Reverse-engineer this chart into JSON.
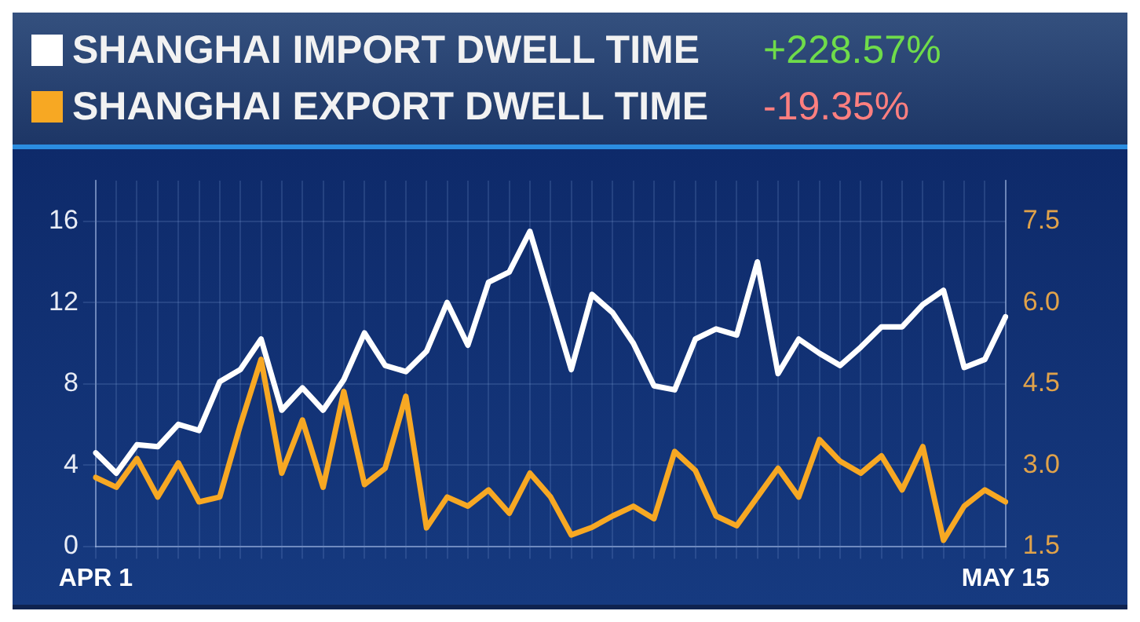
{
  "chart_data": {
    "type": "line",
    "categories": [
      "APR 1",
      null,
      null,
      null,
      null,
      null,
      null,
      null,
      null,
      null,
      null,
      null,
      null,
      null,
      null,
      null,
      null,
      null,
      null,
      null,
      null,
      null,
      null,
      null,
      null,
      null,
      null,
      null,
      null,
      null,
      null,
      null,
      null,
      null,
      null,
      null,
      null,
      null,
      null,
      null,
      null,
      null,
      null,
      null,
      "MAY 15"
    ],
    "series": [
      {
        "name": "SHANGHAI IMPORT DWELL TIME",
        "color": "#ffffff",
        "values": [
          4.6,
          3.6,
          5.0,
          4.9,
          6.0,
          5.7,
          8.1,
          8.7,
          10.2,
          6.7,
          7.8,
          6.7,
          8.2,
          10.5,
          8.9,
          8.6,
          9.6,
          12.0,
          9.9,
          13.0,
          13.5,
          15.5,
          12.1,
          8.7,
          12.4,
          11.5,
          10.0,
          7.9,
          7.7,
          10.2,
          10.7,
          10.4,
          14.0,
          8.5,
          10.2,
          9.5,
          8.9,
          9.8,
          10.8,
          10.8,
          11.9,
          12.6,
          8.8,
          9.2,
          11.3
        ]
      },
      {
        "name": "SHANGHAI EXPORT DWELL TIME",
        "color": "#f7a823",
        "axis": "y2",
        "values": [
          2.77,
          2.59,
          3.12,
          2.41,
          3.04,
          2.32,
          2.41,
          3.74,
          4.95,
          2.85,
          3.83,
          2.59,
          4.36,
          2.64,
          2.94,
          4.27,
          1.84,
          2.41,
          2.24,
          2.54,
          2.11,
          2.85,
          2.41,
          1.71,
          1.85,
          2.06,
          2.24,
          2.01,
          3.25,
          2.9,
          2.06,
          1.88,
          2.41,
          2.94,
          2.41,
          3.47,
          3.07,
          2.85,
          3.17,
          2.54,
          3.34,
          1.61,
          2.24,
          2.54,
          2.32
        ]
      }
    ],
    "ylim": [
      0,
      18
    ],
    "yticks": [
      0,
      4,
      8,
      12,
      16
    ],
    "y2lim": [
      1.5,
      8.25
    ],
    "y2ticks": [
      {
        "value": 1.5,
        "label": "1.5"
      },
      {
        "value": 3,
        "label": "3.0"
      },
      {
        "value": 4.5,
        "label": "4.5"
      },
      {
        "value": 6,
        "label": "6.0"
      },
      {
        "value": 7.5,
        "label": "7.5"
      }
    ],
    "annotations": [
      "+228.57%",
      "-19.35%"
    ],
    "legend": "top",
    "grid": true,
    "marker": "none",
    "line_style": "solid"
  }
}
